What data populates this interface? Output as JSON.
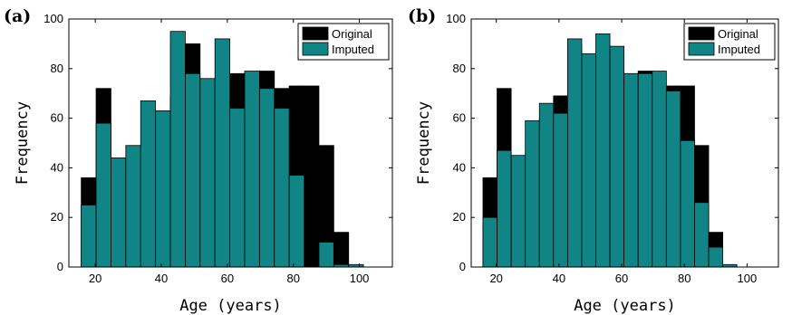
{
  "colors": {
    "original": "#000000",
    "imputed": "#118585",
    "frame": "#000000"
  },
  "chart_data": [
    {
      "type": "bar",
      "panel_label": "(a)",
      "xlabel": "Age (years)",
      "ylabel": "Frequency",
      "xlim": [
        12,
        110
      ],
      "ylim": [
        0,
        100
      ],
      "xticks": [
        20,
        40,
        60,
        80,
        100
      ],
      "yticks": [
        0,
        20,
        40,
        60,
        80,
        100
      ],
      "legend_position": "top-right",
      "bin_width": 4.5,
      "series": [
        {
          "name": "Original",
          "x": [
            18,
            22.5,
            27,
            31.5,
            36,
            40.5,
            45,
            49.5,
            54,
            58.5,
            63,
            67.5,
            72,
            76.5,
            81,
            85.5,
            90,
            94.5,
            99,
            103.5,
            108
          ],
          "values": [
            36,
            72,
            42,
            41,
            33,
            60,
            69,
            90,
            73,
            76,
            78,
            62,
            79,
            72,
            73,
            73,
            49,
            14,
            0,
            0,
            0
          ]
        },
        {
          "name": "Imputed",
          "x": [
            18,
            22.5,
            27,
            31.5,
            36,
            40.5,
            45,
            49.5,
            54,
            58.5,
            63,
            67.5,
            72,
            76.5,
            81,
            85.5,
            90,
            94.5,
            99,
            103.5,
            108
          ],
          "values": [
            25,
            58,
            44,
            49,
            67,
            63,
            95,
            78,
            76,
            92,
            64,
            79,
            72,
            64,
            37,
            0,
            10,
            1,
            1,
            0,
            0
          ]
        }
      ]
    },
    {
      "type": "bar",
      "panel_label": "(b)",
      "xlabel": "Age (years)",
      "ylabel": "Frequency",
      "xlim": [
        12,
        110
      ],
      "ylim": [
        0,
        100
      ],
      "xticks": [
        20,
        40,
        60,
        80,
        100
      ],
      "yticks": [
        0,
        20,
        40,
        60,
        80,
        100
      ],
      "legend_position": "top-right",
      "bin_width": 4.5,
      "series": [
        {
          "name": "Original",
          "x": [
            18,
            22.5,
            27,
            31.5,
            36,
            40.5,
            45,
            49.5,
            54,
            58.5,
            63,
            67.5,
            72,
            76.5,
            81,
            85.5,
            90,
            94.5,
            99,
            103.5,
            108
          ],
          "values": [
            36,
            72,
            42,
            33,
            60,
            69,
            90,
            73,
            76,
            78,
            62,
            79,
            72,
            73,
            73,
            49,
            14,
            0,
            0,
            0,
            0
          ]
        },
        {
          "name": "Imputed",
          "x": [
            18,
            22.5,
            27,
            31.5,
            36,
            40.5,
            45,
            49.5,
            54,
            58.5,
            63,
            67.5,
            72,
            76.5,
            81,
            85.5,
            90,
            94.5,
            99,
            103.5,
            108
          ],
          "values": [
            20,
            47,
            45,
            59,
            66,
            62,
            92,
            86,
            94,
            89,
            78,
            78,
            79,
            71,
            51,
            26,
            8,
            1,
            0,
            0,
            0
          ]
        }
      ]
    }
  ]
}
